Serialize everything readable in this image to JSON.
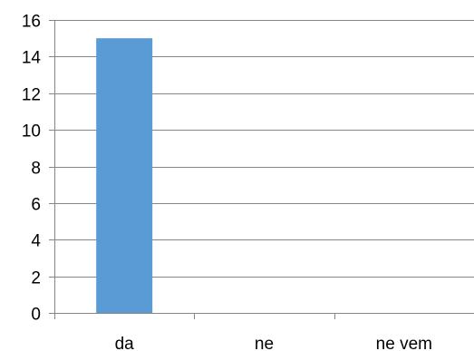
{
  "chart_data": {
    "type": "bar",
    "title": "",
    "xlabel": "",
    "ylabel": "",
    "categories": [
      "da",
      "ne",
      "ne vem"
    ],
    "values": [
      15,
      0,
      0
    ],
    "ylim": [
      0,
      16
    ],
    "yticks": [
      0,
      2,
      4,
      6,
      8,
      10,
      12,
      14,
      16
    ],
    "grid": true,
    "legend": "none",
    "bar_color": "#5B9BD5",
    "grid_color": "#868686",
    "axis_color": "#868686"
  }
}
